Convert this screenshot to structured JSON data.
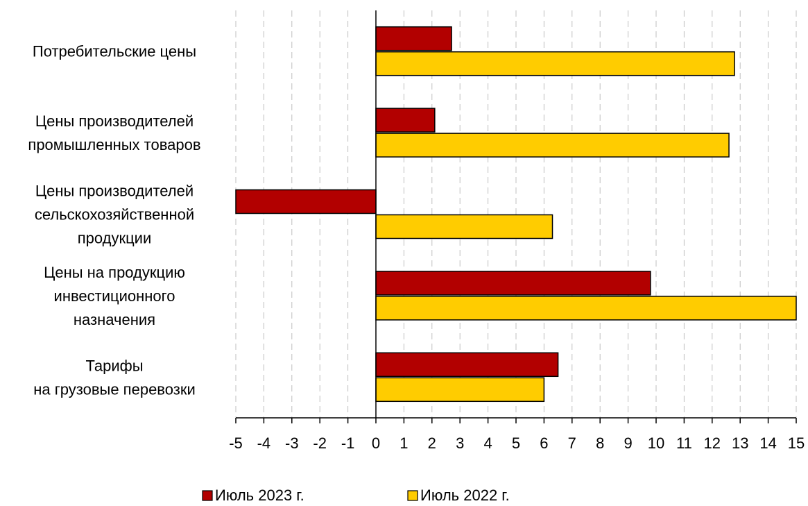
{
  "chart_data": {
    "type": "bar",
    "orientation": "horizontal",
    "categories": [
      [
        "Потребительские цены"
      ],
      [
        "Цены производителей",
        "промышленных товаров"
      ],
      [
        "Цены производителей",
        "сельскохозяйственной",
        "продукции"
      ],
      [
        "Цены на продукцию",
        "инвестиционного",
        "назначения"
      ],
      [
        "Тарифы",
        "на грузовые перевозки"
      ]
    ],
    "series": [
      {
        "name": "Июль 2023 г.",
        "color": "#b20000",
        "values": [
          2.7,
          2.1,
          -5.0,
          9.8,
          6.5
        ]
      },
      {
        "name": "Июль 2022 г.",
        "color": "#ffcc00",
        "values": [
          12.8,
          12.6,
          6.3,
          15.0,
          6.0
        ]
      }
    ],
    "xlim": [
      -5,
      15
    ],
    "xticks": [
      "-5",
      "-4",
      "-3",
      "-2",
      "-1",
      "0",
      "1",
      "2",
      "3",
      "4",
      "5",
      "6",
      "7",
      "8",
      "9",
      "10",
      "11",
      "12",
      "13",
      "14",
      "15"
    ],
    "grid": "vertical dashed",
    "legend_position": "bottom"
  }
}
